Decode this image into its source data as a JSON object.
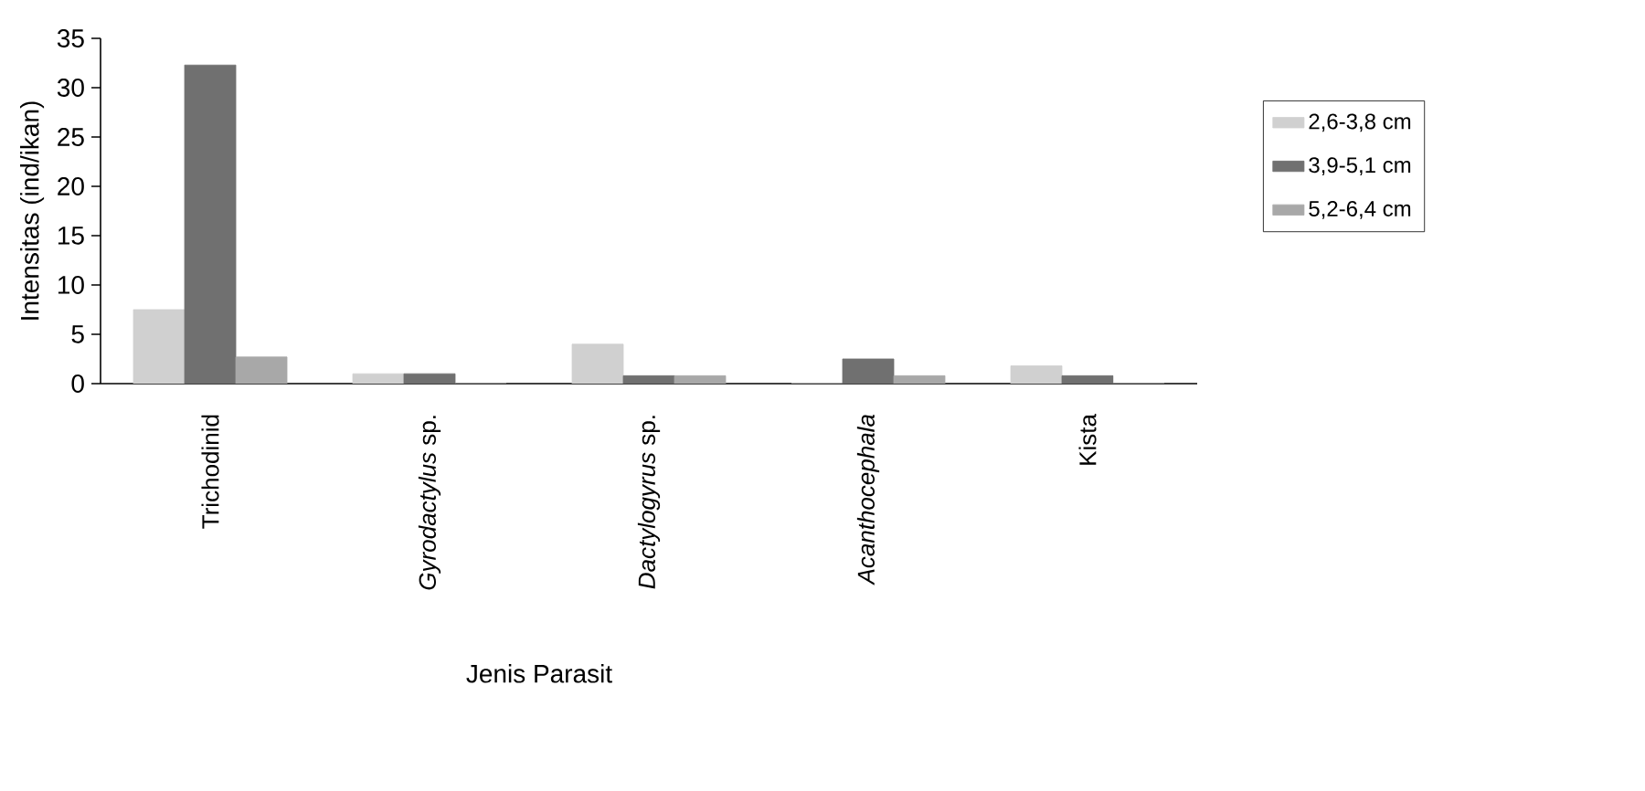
{
  "chart_data": {
    "type": "bar",
    "xlabel": "Jenis Parasit",
    "ylabel": "Intensitas (ind/ikan)",
    "categories": [
      "Trichodinid",
      "*Gyrodactylus* sp.",
      "*Dactylogyrus* sp.",
      "*Acanthocephala*",
      "Kista"
    ],
    "series": [
      {
        "name": "2,6-3,8 cm",
        "color": "#d0d0d0",
        "values": [
          7.5,
          1,
          4,
          0,
          1.8
        ]
      },
      {
        "name": "3,9-5,1 cm",
        "color": "#707070",
        "values": [
          32.3,
          1,
          0.8,
          2.5,
          0.8
        ]
      },
      {
        "name": "5,2-6,4 cm",
        "color": "#a8a8a8",
        "values": [
          2.7,
          0,
          0.8,
          0.8,
          0
        ]
      }
    ],
    "ylim": [
      0,
      35
    ],
    "yticks": [
      0,
      5,
      10,
      15,
      20,
      25,
      30,
      35
    ],
    "legend": "right",
    "grid": false
  }
}
